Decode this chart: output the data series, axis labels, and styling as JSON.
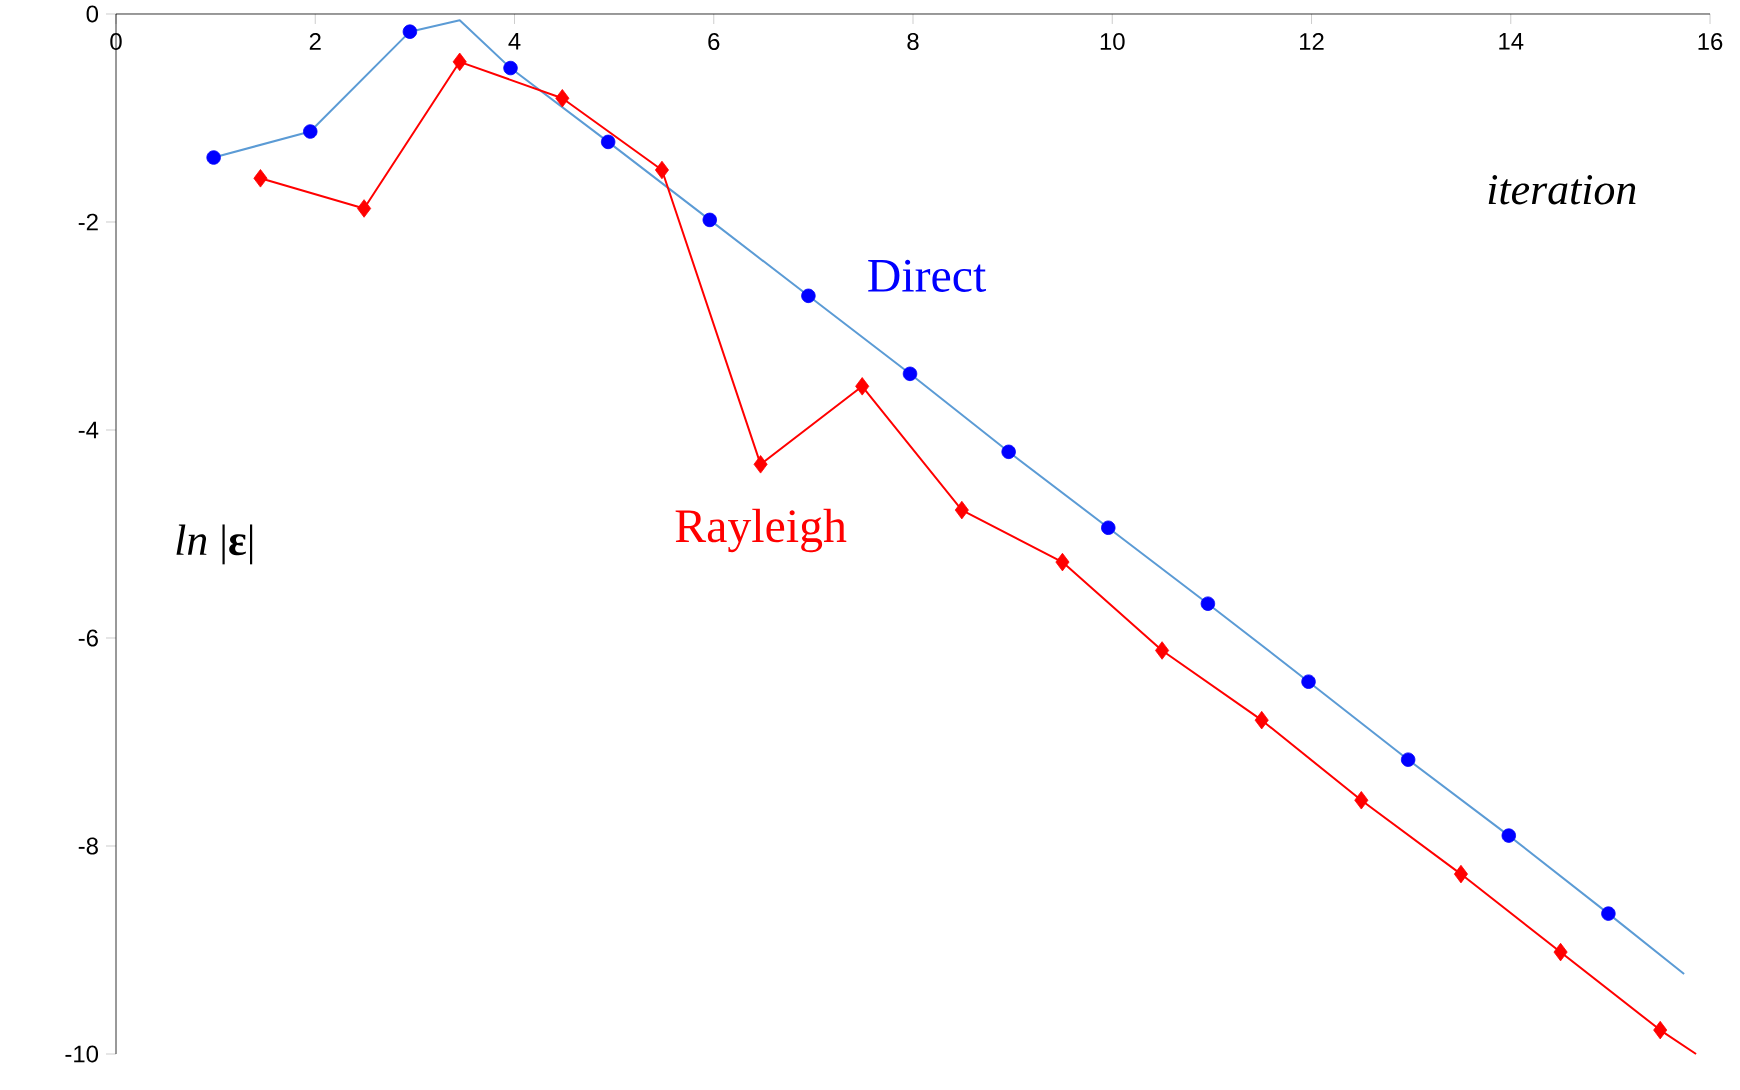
{
  "chart_data": {
    "type": "line",
    "xlabel": "iteration",
    "ylabel": "*ln* |**ε**|",
    "xlim": [
      0,
      16
    ],
    "xticks": [
      0,
      2,
      4,
      6,
      8,
      10,
      12,
      14,
      16
    ],
    "ylim": [
      -10,
      0
    ],
    "yticks": [
      -10,
      -8,
      -6,
      -4,
      -2,
      0
    ],
    "series": [
      {
        "marker": "none",
        "color": "#5b9bd5",
        "x": [
          0.98,
          1.95,
          2.95,
          3.45,
          3.96,
          4.94,
          5.96,
          6.95,
          7.97,
          8.96,
          9.96,
          10.96,
          11.97,
          12.97,
          13.98,
          14.98,
          15.74
        ],
        "values": [
          -1.38,
          -1.13,
          -0.17,
          -0.06,
          -0.52,
          -1.23,
          -1.98,
          -2.71,
          -3.46,
          -4.21,
          -4.94,
          -5.67,
          -6.42,
          -7.17,
          -7.9,
          -8.65,
          -9.23
        ]
      },
      {
        "type": "scatter",
        "marker": "circle",
        "name": "Direct",
        "color": "#0000ff",
        "x": [
          0.98,
          1.95,
          2.95,
          3.96,
          4.94,
          5.96,
          6.95,
          7.97,
          8.96,
          9.96,
          10.96,
          11.97,
          12.97,
          13.98,
          14.98
        ],
        "values": [
          -1.38,
          -1.13,
          -0.17,
          -0.52,
          -1.23,
          -1.98,
          -2.71,
          -3.46,
          -4.21,
          -4.94,
          -5.67,
          -6.42,
          -7.17,
          -7.9,
          -8.65
        ]
      },
      {
        "marker": "none",
        "color": "#ff0000",
        "x": [
          1.45,
          2.49,
          3.45,
          4.48,
          5.48,
          6.47,
          7.49,
          8.49,
          9.5,
          10.5,
          11.5,
          12.5,
          13.5,
          14.5,
          15.5,
          15.86
        ],
        "values": [
          -1.58,
          -1.87,
          -0.46,
          -0.81,
          -1.5,
          -4.33,
          -3.58,
          -4.77,
          -5.27,
          -6.12,
          -6.79,
          -7.56,
          -8.27,
          -9.02,
          -9.77,
          -10
        ]
      },
      {
        "type": "scatter",
        "marker": "diamond",
        "name": "Rayleigh",
        "color": "#ff0000",
        "x": [
          1.45,
          2.49,
          3.45,
          4.48,
          5.48,
          6.47,
          7.49,
          8.49,
          9.5,
          10.5,
          11.5,
          12.5,
          13.5,
          14.5,
          15.5
        ],
        "values": [
          -1.58,
          -1.87,
          -0.46,
          -0.81,
          -1.5,
          -4.33,
          -3.58,
          -4.77,
          -5.27,
          -6.12,
          -6.79,
          -7.56,
          -8.27,
          -9.02,
          -9.77
        ]
      }
    ]
  }
}
